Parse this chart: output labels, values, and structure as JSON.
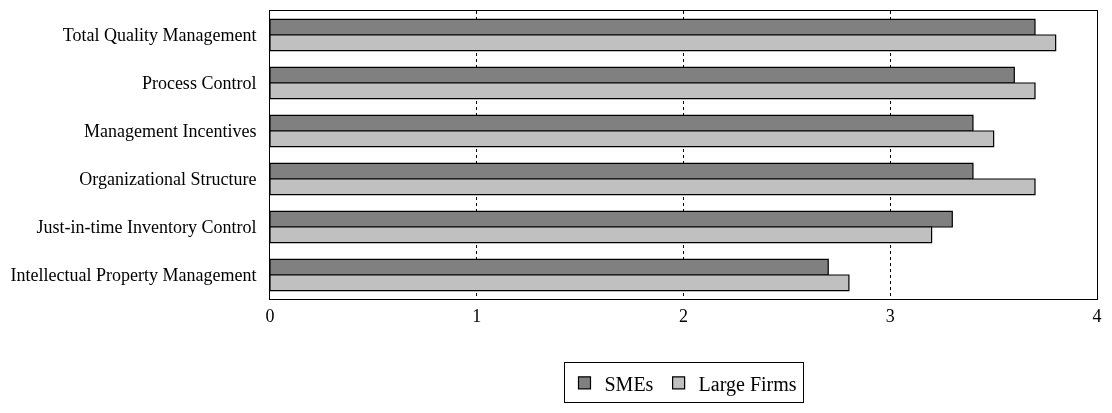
{
  "chart_data": {
    "type": "bar",
    "orientation": "horizontal",
    "categories": [
      "Total Quality Management",
      "Process Control",
      "Management Incentives",
      "Organizational Structure",
      "Just-in-time Inventory Control",
      "Intellectual Property Management"
    ],
    "series": [
      {
        "name": "SMEs",
        "color": "#808080",
        "values": [
          3.7,
          3.6,
          3.4,
          3.4,
          3.3,
          2.7
        ]
      },
      {
        "name": "Large Firms",
        "color": "#c0c0c0",
        "values": [
          3.8,
          3.7,
          3.5,
          3.7,
          3.2,
          2.8
        ]
      }
    ],
    "xlim": [
      0,
      4
    ],
    "xticks": [
      0,
      1,
      2,
      3,
      4
    ],
    "grid": "x",
    "legend": "bottom"
  }
}
